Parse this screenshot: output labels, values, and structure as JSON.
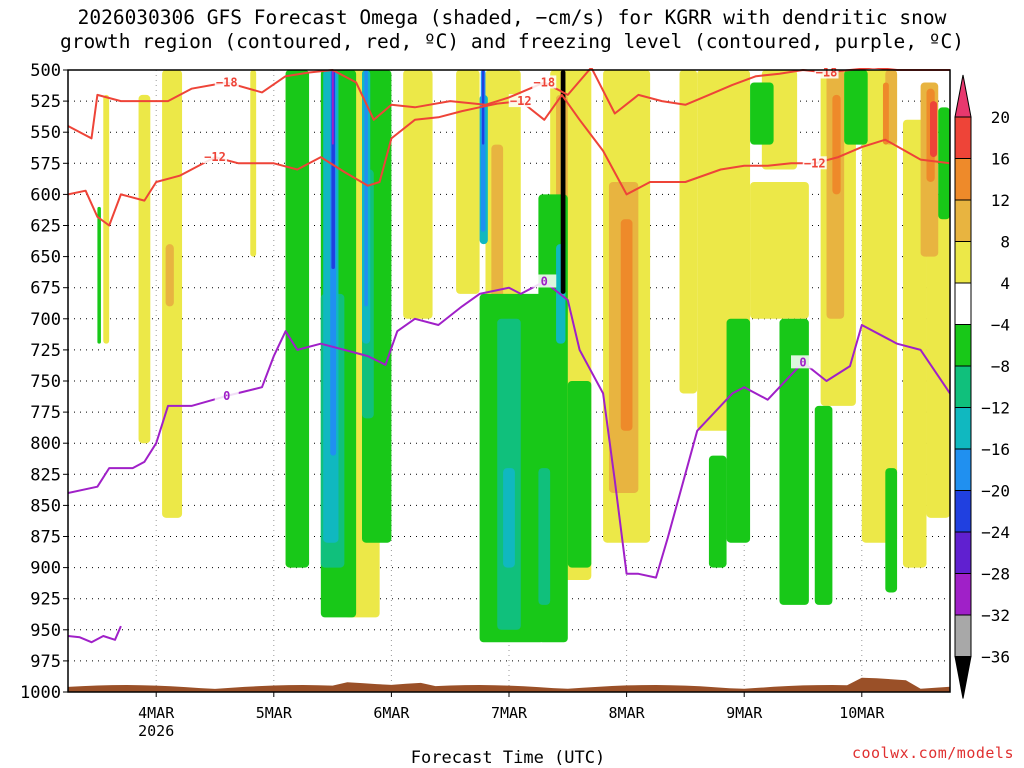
{
  "page": {
    "title_line1": "2026030306 GFS Forecast Omega (shaded, −cm/s) for KGRR with dendritic snow",
    "title_line2": "growth region (contoured, red, ºC) and freezing level (contoured, purple, ºC)",
    "credit": "coolwx.com/models"
  },
  "chart_data": {
    "type": "heatmap",
    "title": "2026030306 GFS Forecast Omega (shaded, −cm/s) for KGRR with dendritic snow growth region (contoured, red, ºC) and freezing level (contoured, purple, ºC)",
    "xlabel": "Forecast Time (UTC)",
    "ylabel": "",
    "x_range_days": [
      3.25,
      10.75
    ],
    "x_ticks": [
      {
        "day": 4,
        "label": "4MAR",
        "sublabel": "2026"
      },
      {
        "day": 5,
        "label": "5MAR",
        "sublabel": ""
      },
      {
        "day": 6,
        "label": "6MAR",
        "sublabel": ""
      },
      {
        "day": 7,
        "label": "7MAR",
        "sublabel": ""
      },
      {
        "day": 8,
        "label": "8MAR",
        "sublabel": ""
      },
      {
        "day": 9,
        "label": "9MAR",
        "sublabel": ""
      },
      {
        "day": 10,
        "label": "10MAR",
        "sublabel": ""
      }
    ],
    "y_ticks": [
      "500",
      "525",
      "550",
      "575",
      "600",
      "625",
      "650",
      "675",
      "700",
      "725",
      "750",
      "775",
      "800",
      "825",
      "850",
      "875",
      "900",
      "925",
      "950",
      "975",
      "1000"
    ],
    "ylim": [
      500,
      1000
    ],
    "grid": true,
    "colorbar": {
      "labels": [
        "20",
        "16",
        "12",
        "8",
        "4",
        "−4",
        "−8",
        "−12",
        "−16",
        "−20",
        "−24",
        "−28",
        "−32",
        "−36"
      ],
      "colors": [
        "#e8386e",
        "#ee4438",
        "#ee8a2a",
        "#e8b440",
        "#ece848",
        "#ffffff",
        "#18c818",
        "#10c07c",
        "#10b8c0",
        "#2090f0",
        "#2040e0",
        "#6020d0",
        "#a020c8",
        "#a8a8a8"
      ]
    },
    "shading": [
      {
        "name": "ascent-weak",
        "color": "#ece848",
        "value": 4,
        "regions": [
          [
            3.55,
            3.6,
            520,
            720
          ],
          [
            3.85,
            3.95,
            520,
            800
          ],
          [
            4.05,
            4.22,
            500,
            860
          ],
          [
            4.8,
            4.85,
            500,
            650
          ],
          [
            5.1,
            5.2,
            500,
            900
          ],
          [
            5.6,
            5.9,
            500,
            940
          ],
          [
            6.1,
            6.35,
            500,
            700
          ],
          [
            6.55,
            6.75,
            500,
            680
          ],
          [
            6.8,
            7.1,
            500,
            920
          ],
          [
            7.35,
            7.7,
            500,
            910
          ],
          [
            7.8,
            8.2,
            500,
            880
          ],
          [
            8.45,
            8.6,
            500,
            760
          ],
          [
            8.6,
            9.05,
            500,
            790
          ],
          [
            9.15,
            9.45,
            500,
            580
          ],
          [
            9.05,
            9.55,
            590,
            700
          ],
          [
            9.65,
            9.95,
            500,
            770
          ],
          [
            10.0,
            10.3,
            500,
            880
          ],
          [
            10.35,
            10.55,
            540,
            900
          ],
          [
            10.55,
            10.75,
            600,
            860
          ]
        ]
      },
      {
        "name": "ascent-moderate",
        "color": "#e8b440",
        "value": 8,
        "regions": [
          [
            4.08,
            4.15,
            640,
            690
          ],
          [
            6.85,
            6.95,
            560,
            700
          ],
          [
            7.4,
            7.5,
            520,
            700
          ],
          [
            7.85,
            8.1,
            590,
            840
          ],
          [
            9.7,
            9.85,
            500,
            700
          ],
          [
            10.2,
            10.3,
            500,
            560
          ],
          [
            10.5,
            10.65,
            510,
            650
          ]
        ]
      },
      {
        "name": "ascent-strong",
        "color": "#ee8a2a",
        "value": 12,
        "regions": [
          [
            7.95,
            8.05,
            620,
            790
          ],
          [
            9.75,
            9.82,
            520,
            600
          ],
          [
            10.18,
            10.23,
            510,
            560
          ],
          [
            10.55,
            10.62,
            515,
            590
          ],
          [
            6.85,
            6.9,
            840,
            900
          ]
        ]
      },
      {
        "name": "ascent-max",
        "color": "#ee4438",
        "value": 16,
        "regions": [
          [
            10.58,
            10.64,
            525,
            570
          ]
        ]
      },
      {
        "name": "descent-weak",
        "color": "#18c818",
        "value": -4,
        "regions": [
          [
            3.5,
            3.53,
            610,
            720
          ],
          [
            5.1,
            5.3,
            500,
            900
          ],
          [
            5.4,
            5.7,
            500,
            940
          ],
          [
            5.75,
            6.0,
            500,
            880
          ],
          [
            6.75,
            7.3,
            680,
            960
          ],
          [
            7.25,
            7.5,
            600,
            960
          ],
          [
            7.5,
            7.7,
            750,
            900
          ],
          [
            8.85,
            9.05,
            700,
            880
          ],
          [
            9.05,
            9.25,
            510,
            560
          ],
          [
            9.3,
            9.55,
            700,
            930
          ],
          [
            9.6,
            9.75,
            770,
            930
          ],
          [
            9.85,
            10.05,
            500,
            560
          ],
          [
            10.2,
            10.3,
            820,
            920
          ],
          [
            10.65,
            10.75,
            530,
            620
          ],
          [
            8.7,
            8.85,
            810,
            900
          ]
        ]
      },
      {
        "name": "descent-moderate",
        "color": "#10c07c",
        "value": -8,
        "regions": [
          [
            5.4,
            5.6,
            680,
            900
          ],
          [
            5.75,
            5.85,
            580,
            780
          ],
          [
            6.9,
            7.1,
            700,
            950
          ],
          [
            7.25,
            7.35,
            820,
            930
          ]
        ]
      },
      {
        "name": "descent-strong",
        "color": "#10b8c0",
        "value": -12,
        "regions": [
          [
            5.42,
            5.55,
            500,
            880
          ],
          [
            5.75,
            5.82,
            500,
            720
          ],
          [
            6.75,
            6.82,
            520,
            640
          ],
          [
            6.95,
            7.05,
            820,
            900
          ],
          [
            7.4,
            7.48,
            640,
            720
          ]
        ]
      },
      {
        "name": "descent-vstrong",
        "color": "#2090f0",
        "value": -16,
        "regions": [
          [
            5.48,
            5.53,
            500,
            810
          ],
          [
            5.77,
            5.8,
            500,
            690
          ],
          [
            6.76,
            6.8,
            500,
            630
          ]
        ]
      },
      {
        "name": "descent-intense",
        "color": "#2040e0",
        "value": -20,
        "regions": [
          [
            5.49,
            5.52,
            500,
            660
          ],
          [
            6.77,
            6.79,
            500,
            560
          ]
        ]
      },
      {
        "name": "descent-extreme",
        "color": "#a020c8",
        "value": -28,
        "regions": [
          [
            5.495,
            5.51,
            500,
            560
          ]
        ]
      },
      {
        "name": "descent-max",
        "color": "#000000",
        "value": -36,
        "regions": [
          [
            7.44,
            7.48,
            500,
            680
          ]
        ]
      }
    ],
    "series": [
      {
        "name": "dendritic -12C lower contour",
        "color": "#ee4438",
        "label": "−12",
        "x": [
          3.25,
          3.4,
          3.5,
          3.6,
          3.7,
          3.9,
          4.0,
          4.2,
          4.5,
          4.7,
          5.0,
          5.2,
          5.4,
          5.6,
          5.8,
          5.9,
          6.0,
          6.2,
          6.4,
          6.6,
          6.75,
          6.9,
          7.1,
          7.3,
          7.45,
          7.6,
          7.8,
          8.0,
          8.2,
          8.5,
          8.8,
          9.0,
          9.2,
          9.4,
          9.6,
          9.8,
          10.0,
          10.2,
          10.5,
          10.75
        ],
        "y": [
          600,
          597,
          618,
          625,
          600,
          605,
          590,
          585,
          570,
          575,
          575,
          580,
          570,
          582,
          593,
          590,
          555,
          540,
          538,
          533,
          530,
          527,
          525,
          540,
          520,
          540,
          565,
          600,
          590,
          590,
          580,
          577,
          577,
          575,
          575,
          570,
          562,
          556,
          572,
          575
        ]
      },
      {
        "name": "dendritic -18C upper contour",
        "color": "#ee4438",
        "label": "−18",
        "x": [
          3.25,
          3.45,
          3.5,
          3.7,
          3.9,
          4.1,
          4.3,
          4.6,
          4.9,
          5.1,
          5.3,
          5.5,
          5.7,
          5.85,
          6.0,
          6.2,
          6.5,
          6.8,
          7.0,
          7.1,
          7.3,
          7.5,
          7.7,
          7.9,
          8.1,
          8.3,
          8.5,
          8.7,
          8.9,
          9.1,
          9.3,
          9.5,
          9.7,
          9.9,
          10.1,
          10.3,
          10.5,
          10.75
        ],
        "y": [
          545,
          555,
          520,
          525,
          525,
          525,
          515,
          510,
          518,
          505,
          502,
          500,
          510,
          540,
          528,
          530,
          525,
          528,
          522,
          518,
          510,
          520,
          498,
          535,
          520,
          525,
          528,
          520,
          512,
          505,
          503,
          500,
          502,
          500,
          498,
          500,
          500,
          500
        ]
      },
      {
        "name": "freezing level 0C",
        "color": "#a020c8",
        "label": "0",
        "x": [
          3.25,
          3.5,
          3.6,
          3.8,
          3.9,
          4.0,
          4.1,
          4.3,
          4.6,
          4.9,
          5.0,
          5.1,
          5.2,
          5.4,
          5.6,
          5.8,
          5.95,
          6.05,
          6.2,
          6.4,
          6.6,
          6.75,
          7.0,
          7.1,
          7.3,
          7.5,
          7.6,
          7.8,
          7.9,
          8.0,
          8.1,
          8.25,
          8.35,
          8.6,
          8.9,
          9.0,
          9.2,
          9.5,
          9.7,
          9.9,
          10.0,
          10.3,
          10.5,
          10.75
        ],
        "y": [
          840,
          835,
          820,
          820,
          815,
          800,
          770,
          770,
          762,
          755,
          730,
          710,
          725,
          720,
          725,
          730,
          737,
          710,
          700,
          705,
          690,
          680,
          675,
          680,
          670,
          685,
          725,
          760,
          830,
          905,
          905,
          908,
          876,
          790,
          760,
          755,
          765,
          735,
          750,
          738,
          705,
          720,
          725,
          760
        ]
      },
      {
        "name": "freezing level 0C lower-left",
        "color": "#a020c8",
        "label": "",
        "x": [
          3.25,
          3.35,
          3.45,
          3.55,
          3.65,
          3.7
        ],
        "y": [
          955,
          956,
          960,
          955,
          958,
          947
        ]
      }
    ],
    "surface_terrain": {
      "color": "#9a5028",
      "base_pressure": 1000
    }
  }
}
